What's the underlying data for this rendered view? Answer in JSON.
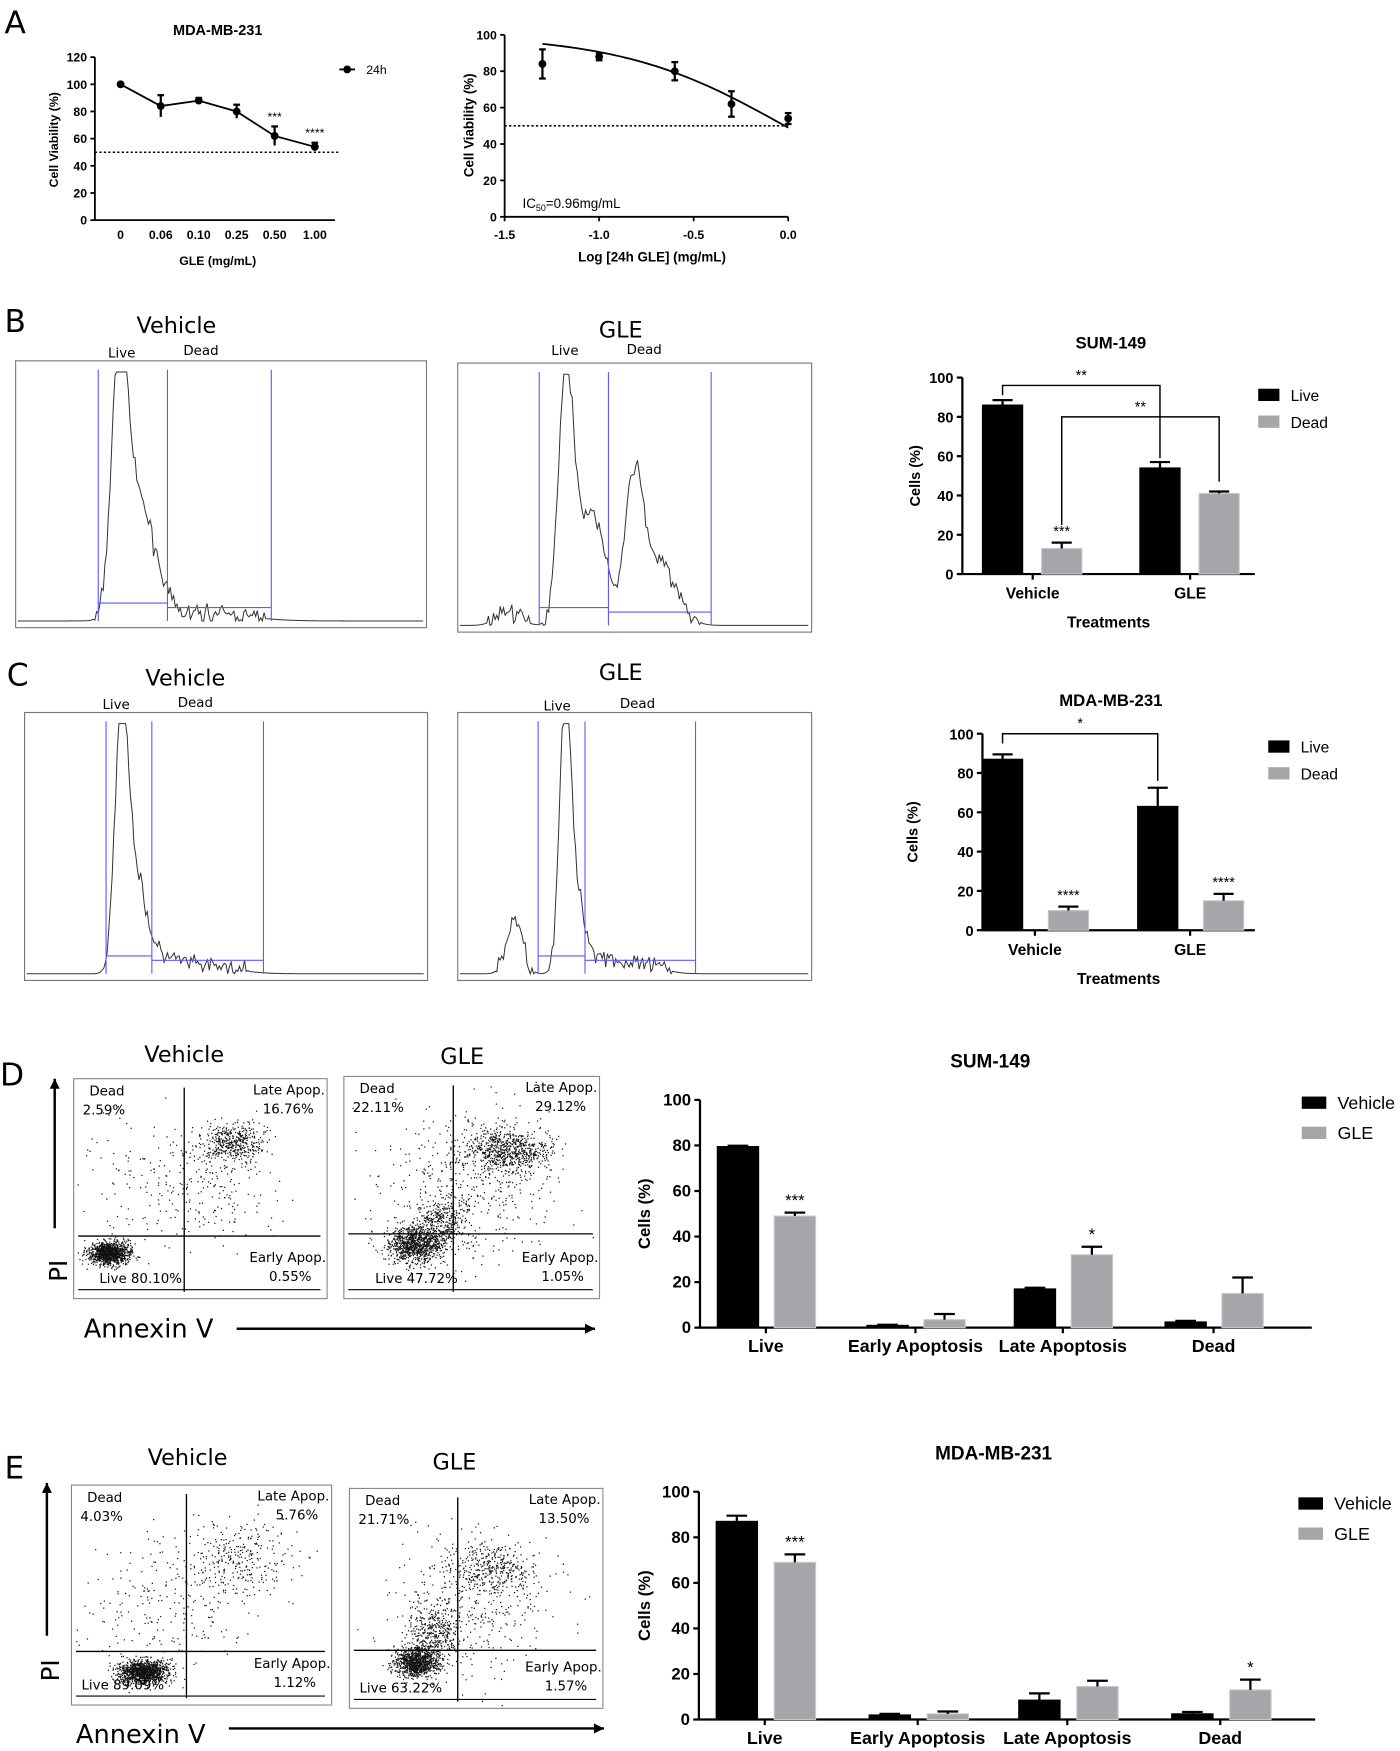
{
  "panel_labels": [
    "A",
    "B",
    "C",
    "D",
    "E"
  ],
  "colors": {
    "black": "#000000",
    "gray": "#a6a6aa",
    "gate": "#5a5aff"
  },
  "chart_data": [
    {
      "type": "line",
      "title": "MDA-MB-231",
      "xlabel": "GLE (mg/mL)",
      "ylabel": "Cell Viability (%)",
      "categories": [
        "0",
        "0.06",
        "0.10",
        "0.25",
        "0.50",
        "1.00"
      ],
      "ylim": [
        0,
        120
      ],
      "ytick_labels": [
        "0",
        "20",
        "40",
        "60",
        "80",
        "100",
        "120"
      ],
      "reference_line": 50,
      "series": [
        {
          "name": "24h",
          "values": [
            100,
            84,
            88,
            80,
            62,
            54
          ],
          "errors": [
            1,
            8,
            2,
            5,
            7,
            3
          ],
          "annotations": [
            "",
            "",
            "",
            "",
            "***",
            "****"
          ]
        }
      ]
    },
    {
      "type": "scatter",
      "title": "",
      "xlabel": "Log [24h GLE] (mg/mL)",
      "ylabel": "Cell Viability (%)",
      "x": [
        -1.3,
        -1.0,
        -0.6,
        -0.3,
        0.0
      ],
      "y": [
        84,
        88,
        80,
        62,
        54
      ],
      "errors": [
        8,
        2,
        5,
        7,
        3
      ],
      "xlim": [
        -1.5,
        0.0
      ],
      "ylim": [
        0,
        100
      ],
      "xtick_values": [
        -1.5,
        -1.0,
        -0.5,
        0.0
      ],
      "xtick_labels": [
        "-1.5",
        "-1.0",
        "-0.5",
        "0.0"
      ],
      "ytick_labels": [
        "0",
        "20",
        "40",
        "60",
        "80",
        "100"
      ],
      "reference_line": 50,
      "fit": {
        "model": "hill",
        "top": 100,
        "bottom": 0,
        "logIC50": -0.018,
        "hill": 1.0,
        "x_from": -1.3,
        "x_to": 0.0
      },
      "ic50_label": {
        "prefix": "IC",
        "sub": "50",
        "suffix": "=0.96mg/mL"
      }
    },
    {
      "type": "bar",
      "title": "SUM-149",
      "xlabel": "Treatments",
      "ylabel": "Cells (%)",
      "categories": [
        "Vehicle",
        "GLE"
      ],
      "ylim": [
        0,
        100
      ],
      "ytick_labels": [
        "0",
        "20",
        "40",
        "60",
        "80",
        "100"
      ],
      "legend": "right",
      "series": [
        {
          "name": "Live",
          "color": "#000000",
          "values": [
            86,
            54
          ],
          "errors": [
            2.5,
            3
          ],
          "annotations": [
            "",
            ""
          ]
        },
        {
          "name": "Dead",
          "color": "#a6a6aa",
          "values": [
            13,
            41
          ],
          "errors": [
            3,
            1
          ],
          "annotations": [
            "***",
            ""
          ]
        }
      ],
      "brackets": [
        {
          "from": [
            0,
            0
          ],
          "to": [
            1,
            0
          ],
          "level": 96,
          "left_end": 91,
          "right_end": 59,
          "label": "**"
        },
        {
          "from": [
            0,
            1
          ],
          "to": [
            1,
            1
          ],
          "level": 80,
          "left_end": 25,
          "right_end": 47,
          "label": "**"
        }
      ]
    },
    {
      "type": "bar",
      "title": "MDA-MB-231",
      "xlabel": "Treatments",
      "ylabel": "Cells (%)",
      "categories": [
        "Vehicle",
        "GLE"
      ],
      "ylim": [
        0,
        100
      ],
      "ytick_labels": [
        "0",
        "20",
        "40",
        "60",
        "80",
        "100"
      ],
      "legend": "right",
      "series": [
        {
          "name": "Live",
          "color": "#000000",
          "values": [
            87,
            63
          ],
          "errors": [
            2.5,
            9.5
          ],
          "annotations": [
            "",
            ""
          ]
        },
        {
          "name": "Dead",
          "color": "#a6a6aa",
          "values": [
            10,
            15
          ],
          "errors": [
            2,
            3.5
          ],
          "annotations": [
            "****",
            "****"
          ]
        }
      ],
      "brackets": [
        {
          "from": [
            0,
            0
          ],
          "to": [
            1,
            0
          ],
          "level": 100,
          "left_end": 95,
          "right_end": 76,
          "label": "*"
        }
      ]
    },
    {
      "type": "bar",
      "title": "SUM-149",
      "xlabel": "",
      "ylabel": "Cells (%)",
      "categories": [
        "Live",
        "Early Apoptosis",
        "Late Apoptosis",
        "Dead"
      ],
      "ylim": [
        0,
        100
      ],
      "ytick_labels": [
        "0",
        "20",
        "40",
        "60",
        "80",
        "100"
      ],
      "legend": "right",
      "series": [
        {
          "name": "Vehicle",
          "color": "#000000",
          "values": [
            79.5,
            1,
            17,
            2.5
          ],
          "errors": [
            0.4,
            0.3,
            0.5,
            0.5
          ],
          "annotations": [
            "",
            "",
            "",
            ""
          ]
        },
        {
          "name": "GLE",
          "color": "#a6a6aa",
          "values": [
            49,
            3.5,
            32,
            15
          ],
          "errors": [
            1.5,
            2.5,
            3.5,
            7
          ],
          "annotations": [
            "***",
            "",
            "*",
            ""
          ]
        }
      ],
      "brackets": []
    },
    {
      "type": "bar",
      "title": "MDA-MB-231",
      "xlabel": "",
      "ylabel": "Cells (%)",
      "categories": [
        "Live",
        "Early Apoptosis",
        "Late Apoptosis",
        "Dead"
      ],
      "ylim": [
        0,
        100
      ],
      "ytick_labels": [
        "0",
        "20",
        "40",
        "60",
        "80",
        "100"
      ],
      "legend": "right",
      "series": [
        {
          "name": "Vehicle",
          "color": "#000000",
          "values": [
            87,
            2,
            8.5,
            2.5
          ],
          "errors": [
            2.5,
            0.5,
            3,
            0.8
          ],
          "annotations": [
            "",
            "",
            "",
            ""
          ]
        },
        {
          "name": "GLE",
          "color": "#a6a6aa",
          "values": [
            69,
            2.5,
            14.5,
            13
          ],
          "errors": [
            3.5,
            1,
            2.5,
            4.5
          ],
          "annotations": [
            "***",
            "",
            "",
            "*"
          ]
        }
      ],
      "brackets": []
    }
  ],
  "histograms": [
    {
      "title": "Vehicle",
      "live_label": "Live",
      "dead_label": "Dead"
    },
    {
      "title": "GLE",
      "live_label": "Live",
      "dead_label": "Dead"
    },
    {
      "title": "Vehicle",
      "live_label": "Live",
      "dead_label": "Dead"
    },
    {
      "title": "GLE",
      "live_label": "Live",
      "dead_label": "Dead"
    }
  ],
  "flow_axes": {
    "y_label": "PI",
    "x_label": "Annexin V"
  },
  "dot_plots": [
    {
      "title": "Vehicle",
      "dead": "Dead",
      "dead_pct": "2.59%",
      "late": "Late Apop.",
      "late_pct": "16.76%",
      "early": "Early Apop.",
      "early_pct": "0.55%",
      "live": "Live 80.10%"
    },
    {
      "title": "GLE",
      "dead": "Dead",
      "dead_pct": "22.11%",
      "late": "Late Apop.",
      "late_pct": "29.12%",
      "early": "Early Apop.",
      "early_pct": "1.05%",
      "live": "Live 47.72%"
    },
    {
      "title": "Vehicle",
      "dead": "Dead",
      "dead_pct": "4.03%",
      "late": "Late Apop.",
      "late_pct": "5.76%",
      "early": "Early Apop.",
      "early_pct": "1.12%",
      "live": "Live 89.09%"
    },
    {
      "title": "GLE",
      "dead": "Dead",
      "dead_pct": "21.71%",
      "late": "Late Apop.",
      "late_pct": "13.50%",
      "early": "Early Apop.",
      "early_pct": "1.57%",
      "live": "Live 63.22%"
    }
  ]
}
